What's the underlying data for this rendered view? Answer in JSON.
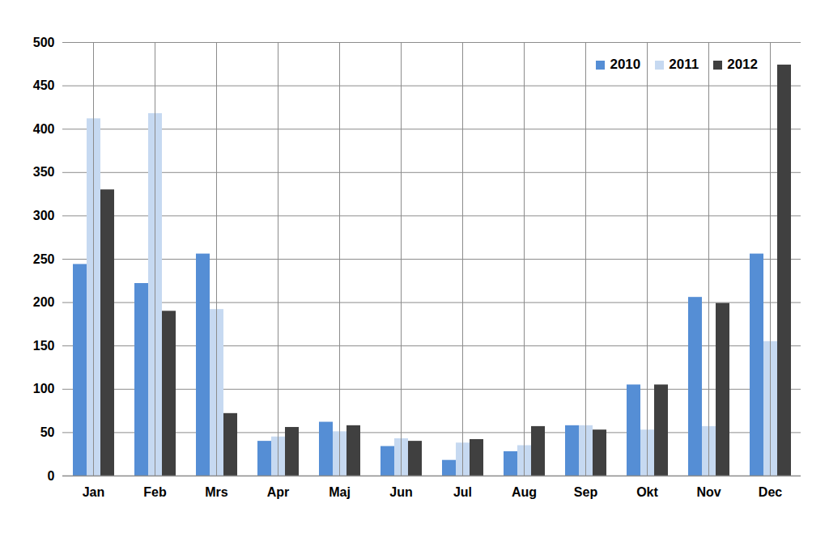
{
  "chart_data": {
    "type": "bar",
    "categories": [
      "Jan",
      "Feb",
      "Mrs",
      "Apr",
      "Maj",
      "Jun",
      "Jul",
      "Aug",
      "Sep",
      "Okt",
      "Nov",
      "Dec"
    ],
    "series": [
      {
        "name": "2010",
        "color": "#558ed5",
        "values": [
          244,
          222,
          256,
          40,
          62,
          34,
          18,
          28,
          58,
          105,
          206,
          256
        ]
      },
      {
        "name": "2011",
        "color": "#c6d9f1",
        "values": [
          412,
          418,
          192,
          45,
          51,
          43,
          38,
          35,
          58,
          53,
          57,
          155
        ]
      },
      {
        "name": "2012",
        "color": "#404040",
        "values": [
          330,
          190,
          72,
          56,
          58,
          40,
          42,
          57,
          53,
          105,
          199,
          474
        ]
      }
    ],
    "ylim": [
      0,
      500
    ],
    "yticks": [
      0,
      50,
      100,
      150,
      200,
      250,
      300,
      350,
      400,
      450,
      500
    ],
    "grid": true,
    "legend": "top-right"
  }
}
